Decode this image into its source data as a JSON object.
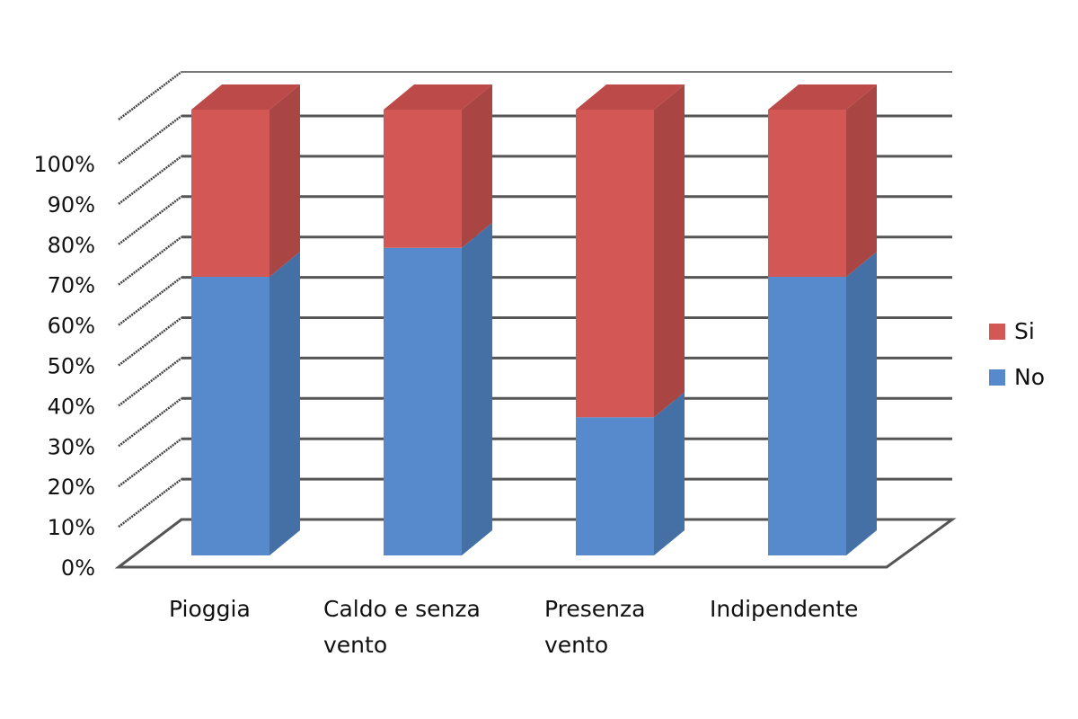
{
  "chart_data": {
    "type": "bar",
    "subtype": "stacked-100-percent-3d",
    "title": "",
    "xlabel": "",
    "ylabel": "",
    "categories": [
      "Pioggia",
      "Caldo e senza vento",
      "Presenza vento",
      "Indipendente"
    ],
    "category_lines": [
      [
        "Pioggia"
      ],
      [
        "Caldo e senza",
        "vento"
      ],
      [
        "Presenza",
        "vento"
      ],
      [
        "Indipendente"
      ]
    ],
    "series": [
      {
        "name": "No",
        "color": "#568ACD",
        "side_color": "#4570A6",
        "top_color": "#4A77B0",
        "values": [
          62.5,
          69,
          31,
          62.5
        ]
      },
      {
        "name": "Si",
        "color": "#D35755",
        "side_color": "#A94644",
        "top_color": "#BB4A48",
        "values": [
          37.5,
          31,
          69,
          37.5
        ]
      }
    ],
    "yticks": [
      "0%",
      "10%",
      "20%",
      "30%",
      "40%",
      "50%",
      "60%",
      "70%",
      "80%",
      "90%",
      "100%"
    ],
    "ylim": [
      0,
      100
    ],
    "grid": true,
    "legend": {
      "position": "right",
      "entries": [
        "Si",
        "No"
      ]
    }
  }
}
